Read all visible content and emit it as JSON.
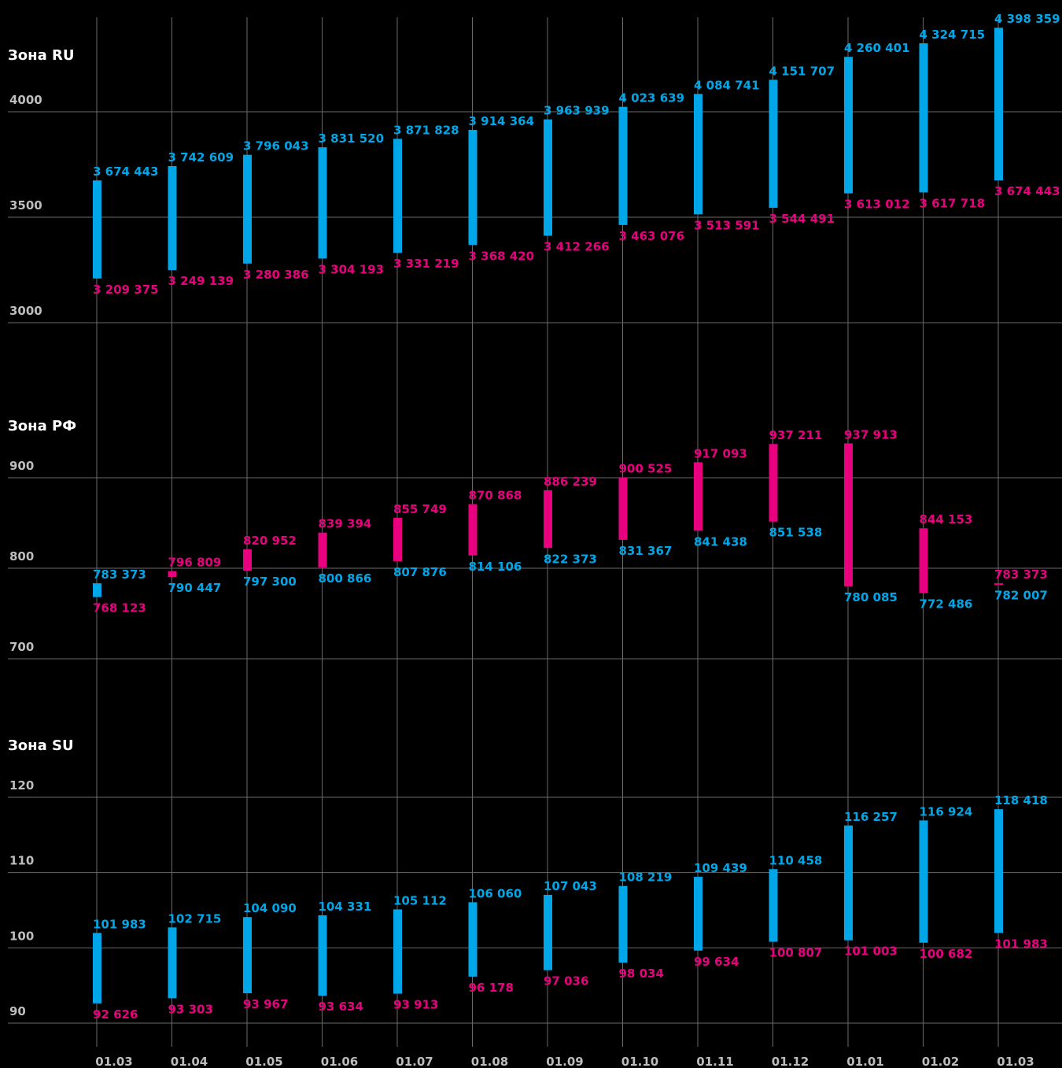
{
  "colors": {
    "up": "#00a7e8",
    "down": "#e8007e",
    "background": "#000000",
    "grid": "#6a6a6a",
    "tick": "#bdbdbd"
  },
  "chart_data": {
    "type": "bar",
    "categories": [
      "01.03",
      "01.04",
      "01.05",
      "01.06",
      "01.07",
      "01.08",
      "01.09",
      "01.10",
      "01.11",
      "01.12",
      "01.01",
      "01.02",
      "01.03"
    ],
    "grid": true,
    "panels": [
      {
        "title": "Зона RU",
        "yticks": [
          3000,
          3500,
          4000
        ],
        "ylim": [
          3000,
          4480
        ],
        "series": [
          {
            "name": "",
            "values": [
              3674443,
              3742609,
              3796043,
              3831520,
              3871828,
              3914364,
              3963939,
              4023639,
              4084741,
              4151707,
              4260401,
              4324715,
              4398359
            ]
          },
          {
            "name": "",
            "values": [
              3209375,
              3249139,
              3280386,
              3304193,
              3331219,
              3368420,
              3412266,
              3463076,
              3513591,
              3544491,
              3613012,
              3617718,
              3674443
            ]
          }
        ],
        "labels_top": [
          "3 674 443",
          "3 742 609",
          "3 796 043",
          "3 831 520",
          "3 871 828",
          "3 914 364",
          "3 963 939",
          "4 023 639",
          "4 084 741",
          "4 151 707",
          "4 260 401",
          "4 324 715",
          "4 398 359"
        ],
        "labels_bottom": [
          "3 209 375",
          "3 249 139",
          "3 280 386",
          "3 304 193",
          "3 331 219",
          "3 368 420",
          "3 412 266",
          "3 463 076",
          "3 513 591",
          "3 544 491",
          "3 613 012",
          "3 617 718",
          "3 674 443"
        ]
      },
      {
        "title": "Зона РФ",
        "yticks": [
          700,
          800,
          900
        ],
        "ylim": [
          700,
          950
        ],
        "series": [
          {
            "name": "",
            "values": [
              783373,
              796809,
              820952,
              839394,
              855749,
              870868,
              886239,
              900525,
              917093,
              937211,
              937913,
              844153,
              783373
            ]
          },
          {
            "name": "",
            "values": [
              768123,
              790447,
              797300,
              800866,
              807876,
              814106,
              822373,
              831367,
              841438,
              851538,
              780085,
              772486,
              782007
            ]
          }
        ],
        "labels_top": [
          "783 373",
          "796 809",
          "820 952",
          "839 394",
          "855 749",
          "870 868",
          "886 239",
          "900 525",
          "917 093",
          "937 211",
          "937 913",
          "844 153",
          "783 373"
        ],
        "labels_bottom": [
          "768 123",
          "790 447",
          "797 300",
          "800 866",
          "807 876",
          "814 106",
          "822 373",
          "831 367",
          "841 438",
          "851 538",
          "780 085",
          "772 486",
          "782 007"
        ],
        "top_label_colors": [
          "up",
          "down",
          "down",
          "down",
          "down",
          "down",
          "down",
          "down",
          "down",
          "down",
          "down",
          "down",
          "down"
        ],
        "bottom_label_colors": [
          "down",
          "up",
          "up",
          "up",
          "up",
          "up",
          "up",
          "up",
          "up",
          "up",
          "up",
          "up",
          "up"
        ],
        "bar_colors": [
          "up",
          "down",
          "down",
          "down",
          "down",
          "down",
          "down",
          "down",
          "down",
          "down",
          "down",
          "down",
          "down"
        ]
      },
      {
        "title": "Зона SU",
        "yticks": [
          90,
          100,
          110,
          120
        ],
        "ylim": [
          90,
          120
        ],
        "series": [
          {
            "name": "",
            "values": [
              101983,
              102715,
              104090,
              104331,
              105112,
              106060,
              107043,
              108219,
              109439,
              110458,
              116257,
              116924,
              118418
            ]
          },
          {
            "name": "",
            "values": [
              92626,
              93303,
              93967,
              93634,
              93913,
              96178,
              97036,
              98034,
              99634,
              100807,
              101003,
              100682,
              101983
            ]
          }
        ],
        "labels_top": [
          "101 983",
          "102 715",
          "104 090",
          "104 331",
          "105 112",
          "106 060",
          "107 043",
          "108 219",
          "109 439",
          "110 458",
          "116 257",
          "116 924",
          "118 418"
        ],
        "labels_bottom": [
          "92 626",
          "93 303",
          "93 967",
          "93 634",
          "93 913",
          "96 178",
          "97 036",
          "98 034",
          "99 634",
          "100 807",
          "101 003",
          "100 682",
          "101 983"
        ]
      }
    ]
  }
}
